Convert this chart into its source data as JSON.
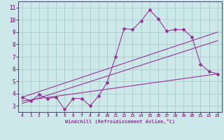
{
  "xlabel": "Windchill (Refroidissement éolien,°C)",
  "background_color": "#cce8e8",
  "grid_color": "#aacccc",
  "line_color": "#993399",
  "x_ticks": [
    0,
    1,
    2,
    3,
    4,
    5,
    6,
    7,
    8,
    9,
    10,
    11,
    12,
    13,
    14,
    15,
    16,
    17,
    18,
    19,
    20,
    21,
    22,
    23
  ],
  "y_ticks": [
    3,
    4,
    5,
    6,
    7,
    8,
    9,
    10,
    11
  ],
  "ylim": [
    2.5,
    11.5
  ],
  "xlim": [
    -0.5,
    23.5
  ],
  "series1": {
    "x": [
      0,
      1,
      2,
      3,
      4,
      5,
      6,
      7,
      8,
      9,
      10,
      11,
      12,
      13,
      14,
      15,
      16,
      17,
      18,
      19,
      20,
      21,
      22,
      23
    ],
    "y": [
      3.7,
      3.4,
      3.9,
      3.6,
      3.7,
      2.7,
      3.6,
      3.6,
      3.0,
      3.8,
      4.9,
      7.0,
      9.3,
      9.2,
      9.9,
      10.8,
      10.1,
      9.1,
      9.2,
      9.2,
      8.6,
      6.4,
      5.8,
      5.6
    ]
  },
  "series2": {
    "x": [
      0,
      23
    ],
    "y": [
      3.7,
      9.0
    ]
  },
  "series3": {
    "x": [
      0,
      23
    ],
    "y": [
      3.4,
      5.6
    ]
  },
  "series4": {
    "x": [
      0,
      23
    ],
    "y": [
      3.2,
      8.3
    ]
  }
}
